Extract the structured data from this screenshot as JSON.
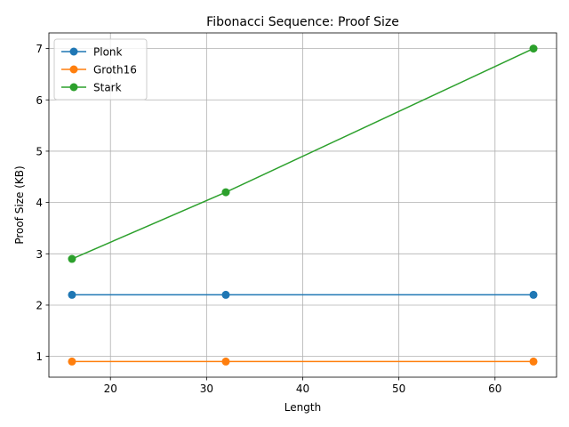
{
  "chart_data": {
    "type": "line",
    "title": "Fibonacci Sequence: Proof Size",
    "xlabel": "Length",
    "ylabel": "Proof Size (KB)",
    "x": [
      16,
      32,
      64
    ],
    "series": [
      {
        "name": "Plonk",
        "values": [
          2.2,
          2.2,
          2.2
        ],
        "color": "#1f77b4"
      },
      {
        "name": "Groth16",
        "values": [
          0.9,
          0.9,
          0.9
        ],
        "color": "#ff7f0e"
      },
      {
        "name": "Stark",
        "values": [
          2.9,
          4.2,
          7.0
        ],
        "color": "#2ca02c"
      }
    ],
    "xlim": [
      13.6,
      66.4
    ],
    "ylim": [
      0.595,
      7.305
    ],
    "xticks": [
      20,
      30,
      40,
      50,
      60
    ],
    "yticks": [
      1,
      2,
      3,
      4,
      5,
      6,
      7
    ],
    "grid": true,
    "legend": "top-left"
  }
}
